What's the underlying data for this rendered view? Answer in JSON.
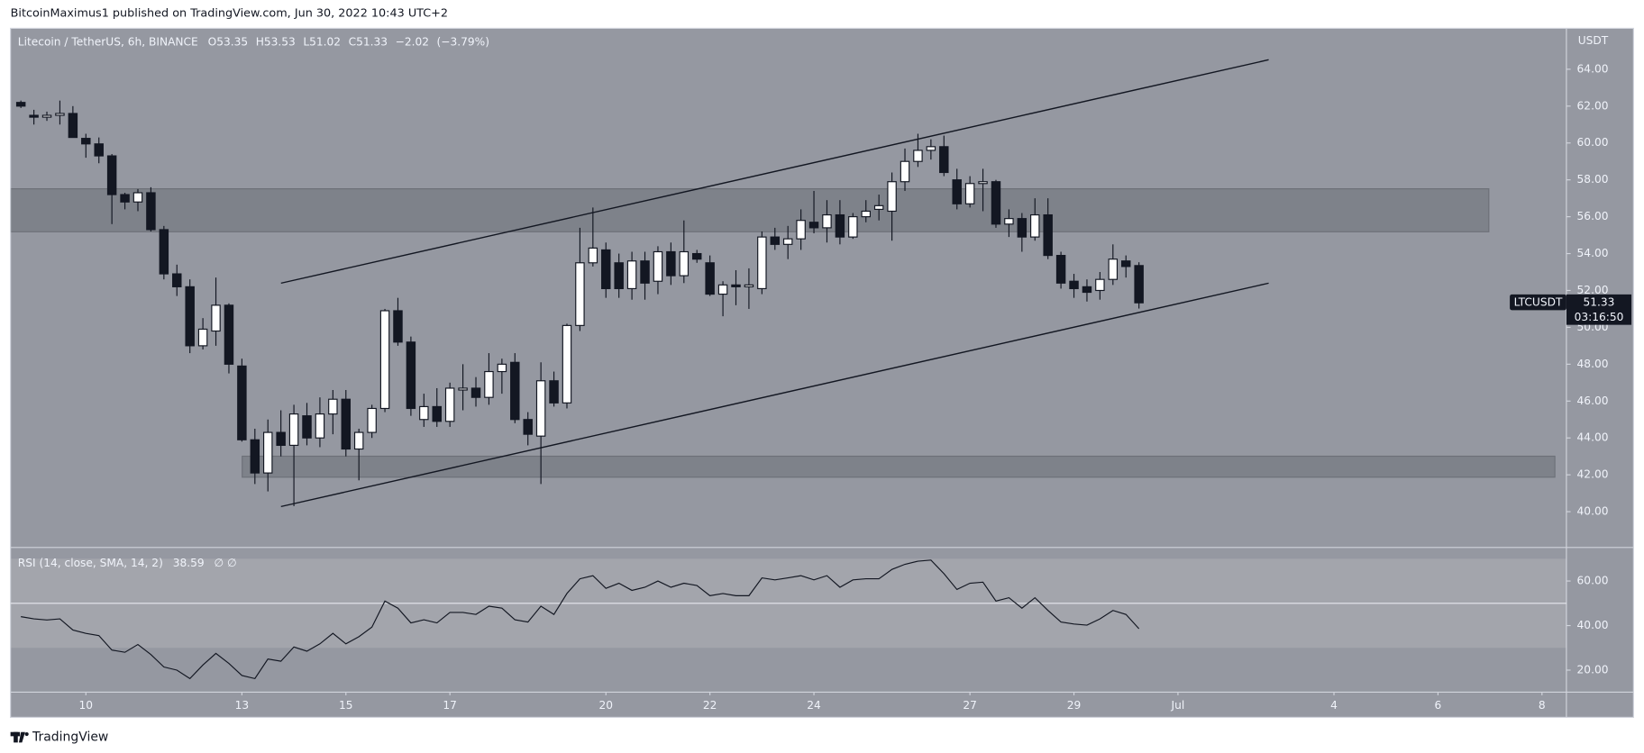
{
  "header": {
    "published": "BitcoinMaximus1 published on TradingView.com, Jun 30, 2022 10:43 UTC+2"
  },
  "footer": {
    "brand": "TradingView"
  },
  "chart_data": {
    "type": "candlestick",
    "title": "Litecoin / TetherUS, 6h, BINANCE",
    "legend_prefixes": [
      "O",
      "H",
      "L",
      "C"
    ],
    "change": "−2.02",
    "change_pct": "(−3.79%)",
    "y_axis_label": "USDT",
    "symbol": "LTCUSDT",
    "countdown": "03:16:50",
    "up_color": "#ffffff",
    "down_color": "#131722",
    "grid": false,
    "xlim": [
      8.55,
      38.47
    ],
    "xticks": [
      10,
      13,
      15,
      17,
      20,
      22,
      24,
      27,
      29,
      {
        "value": 31,
        "label": "Jul"
      },
      {
        "value": 34,
        "label": "4"
      },
      {
        "value": 36,
        "label": "6"
      },
      {
        "value": 38,
        "label": "8"
      }
    ],
    "ylim": [
      38.06,
      66.22
    ],
    "yticks": [
      {
        "value": 40,
        "label": "40.00"
      },
      {
        "value": 42,
        "label": "42.00"
      },
      {
        "value": 44,
        "label": "44.00"
      },
      {
        "value": 46,
        "label": "46.00"
      },
      {
        "value": 48,
        "label": "48.00"
      },
      {
        "value": 50,
        "label": "50.00"
      },
      {
        "value": 52,
        "label": "52.00"
      },
      {
        "value": 54,
        "label": "54.00"
      },
      {
        "value": 56,
        "label": "56.00"
      },
      {
        "value": 58,
        "label": "58.00"
      },
      {
        "value": 60,
        "label": "60.00"
      },
      {
        "value": 62,
        "label": "62.00"
      },
      {
        "value": 64,
        "label": "64.00"
      }
    ],
    "x": [
      8.75,
      9,
      9.25,
      9.5,
      9.75,
      10,
      10.25,
      10.5,
      10.75,
      11,
      11.25,
      11.5,
      11.75,
      12,
      12.25,
      12.5,
      12.75,
      13,
      13.25,
      13.5,
      13.75,
      14,
      14.25,
      14.5,
      14.75,
      15,
      15.25,
      15.5,
      15.75,
      16,
      16.25,
      16.5,
      16.75,
      17,
      17.25,
      17.5,
      17.75,
      18,
      18.25,
      18.5,
      18.75,
      19,
      19.25,
      19.5,
      19.75,
      20,
      20.25,
      20.5,
      20.75,
      21,
      21.25,
      21.5,
      21.75,
      22,
      22.25,
      22.5,
      22.75,
      23,
      23.25,
      23.5,
      23.75,
      24,
      24.25,
      24.5,
      24.75,
      25,
      25.25,
      25.5,
      25.75,
      26,
      26.25,
      26.5,
      26.75,
      27,
      27.25,
      27.5,
      27.75,
      28,
      28.25,
      28.5,
      28.75,
      29,
      29.25,
      29.5,
      29.75,
      30,
      30.25
    ],
    "open": [
      62.2,
      61.5,
      61.4,
      61.5,
      61.6,
      60.25,
      59.95,
      59.3,
      57.2,
      56.8,
      57.3,
      55.3,
      52.9,
      52.2,
      49.0,
      49.8,
      51.2,
      47.9,
      43.9,
      42.1,
      44.3,
      43.6,
      45.2,
      44.0,
      45.3,
      46.1,
      43.4,
      44.3,
      45.6,
      50.9,
      49.2,
      45.0,
      45.7,
      44.9,
      46.6,
      46.7,
      46.2,
      47.6,
      48.1,
      45.0,
      44.1,
      47.1,
      45.9,
      50.1,
      53.5,
      54.2,
      53.5,
      52.1,
      53.6,
      52.5,
      54.1,
      52.8,
      54.0,
      53.5,
      51.8,
      52.3,
      52.2,
      52.1,
      54.9,
      54.5,
      54.8,
      55.7,
      55.4,
      56.1,
      54.9,
      56.0,
      56.4,
      56.3,
      57.9,
      59.0,
      59.6,
      59.8,
      58.0,
      56.7,
      57.8,
      57.9,
      55.6,
      55.9,
      54.9,
      56.1,
      53.9,
      52.5,
      52.2,
      52.0,
      52.6,
      53.6,
      53.35
    ],
    "high": [
      62.3,
      61.8,
      61.7,
      62.3,
      62.0,
      60.5,
      60.3,
      59.4,
      57.3,
      57.5,
      57.6,
      55.5,
      53.4,
      52.6,
      50.5,
      52.7,
      51.3,
      48.3,
      44.5,
      45.0,
      45.5,
      45.8,
      45.9,
      46.2,
      46.6,
      46.6,
      44.5,
      45.8,
      51.0,
      51.6,
      49.5,
      46.4,
      46.7,
      47.0,
      48.0,
      47.3,
      48.6,
      48.3,
      48.6,
      45.4,
      48.1,
      47.6,
      50.2,
      55.4,
      56.5,
      54.6,
      54.0,
      54.1,
      54.1,
      54.4,
      54.6,
      55.8,
      54.2,
      53.9,
      52.5,
      53.1,
      53.2,
      55.2,
      55.4,
      55.5,
      56.4,
      57.4,
      56.9,
      56.9,
      56.2,
      56.9,
      57.2,
      58.4,
      59.7,
      60.5,
      60.2,
      60.4,
      58.6,
      58.2,
      58.6,
      58.0,
      56.4,
      56.2,
      57.0,
      57.0,
      54.1,
      52.9,
      52.6,
      53.0,
      54.5,
      53.9,
      53.53
    ],
    "low": [
      61.9,
      61.0,
      61.2,
      61.0,
      60.3,
      59.2,
      58.9,
      55.6,
      56.4,
      56.3,
      55.2,
      52.6,
      51.7,
      48.6,
      48.8,
      49.0,
      47.5,
      43.8,
      41.5,
      41.1,
      43.0,
      40.3,
      43.6,
      43.5,
      44.2,
      43.0,
      41.7,
      44.0,
      45.4,
      49.0,
      45.2,
      44.6,
      44.6,
      44.6,
      45.5,
      45.7,
      45.8,
      46.4,
      44.8,
      43.6,
      41.5,
      45.7,
      45.6,
      49.8,
      53.3,
      51.6,
      51.6,
      51.5,
      51.5,
      51.8,
      52.3,
      52.4,
      53.5,
      51.7,
      50.6,
      51.2,
      51.0,
      51.8,
      54.2,
      53.7,
      54.2,
      55.1,
      54.6,
      54.5,
      54.8,
      55.7,
      55.8,
      54.7,
      57.4,
      58.7,
      59.1,
      58.2,
      56.4,
      56.5,
      56.3,
      55.4,
      54.9,
      54.1,
      54.7,
      53.7,
      52.1,
      51.6,
      51.4,
      51.5,
      52.3,
      52.7,
      51.02
    ],
    "close": [
      62.0,
      61.4,
      61.5,
      61.6,
      60.3,
      59.95,
      59.3,
      57.2,
      56.8,
      57.3,
      55.3,
      52.9,
      52.2,
      49.0,
      49.9,
      51.2,
      48.0,
      43.9,
      42.1,
      44.3,
      43.6,
      45.3,
      44.0,
      45.3,
      46.1,
      43.4,
      44.3,
      45.6,
      50.9,
      49.2,
      45.6,
      45.7,
      44.9,
      46.7,
      46.7,
      46.2,
      47.6,
      48.0,
      45.0,
      44.2,
      47.1,
      45.9,
      50.1,
      53.5,
      54.3,
      52.1,
      52.1,
      53.6,
      52.4,
      54.1,
      52.8,
      54.1,
      53.7,
      51.8,
      52.3,
      52.2,
      52.3,
      54.9,
      54.5,
      54.8,
      55.8,
      55.4,
      56.1,
      54.9,
      56.0,
      56.3,
      56.6,
      57.9,
      59.0,
      59.6,
      59.8,
      58.4,
      56.7,
      57.8,
      57.9,
      55.6,
      55.9,
      54.9,
      56.1,
      53.9,
      52.4,
      52.1,
      51.9,
      52.6,
      53.7,
      53.3,
      51.33
    ],
    "rsi": {
      "type": "line",
      "title": "RSI (14, close, SMA, 14, 2)",
      "extra": "∅ ∅",
      "color": "#131722",
      "ylim": [
        10.1,
        74.6
      ],
      "yticks": [
        {
          "value": 20,
          "label": "20.00"
        },
        {
          "value": 40,
          "label": "40.00"
        },
        {
          "value": 60,
          "label": "60.00"
        }
      ],
      "bands": [
        30,
        70
      ],
      "midline": 50,
      "values": [
        44,
        43,
        42.5,
        43,
        38,
        36.5,
        35.5,
        29,
        28,
        31.5,
        27,
        21.4,
        20,
        16.2,
        22.3,
        27.5,
        23,
        17.6,
        16.2,
        25,
        24,
        30.4,
        28.5,
        31.8,
        36.5,
        31.8,
        35,
        39.3,
        51,
        47.8,
        41.2,
        42.6,
        41.2,
        45.9,
        45.9,
        45,
        48.7,
        47.8,
        42.6,
        41.6,
        48.7,
        45,
        54.4,
        61,
        62.4,
        56.7,
        59,
        55.8,
        57.2,
        60,
        57.2,
        59,
        58,
        53.4,
        54.4,
        53.4,
        53.4,
        61.4,
        60.5,
        61.4,
        62.4,
        60.5,
        62.4,
        57.2,
        60.5,
        61,
        61,
        65.2,
        67.5,
        68.9,
        69.4,
        63.3,
        56.2,
        59,
        59.5,
        51,
        52.5,
        47.8,
        52.5,
        46.8,
        41.6,
        40.7,
        40.2,
        43,
        46.8,
        45,
        38.59
      ]
    }
  }
}
